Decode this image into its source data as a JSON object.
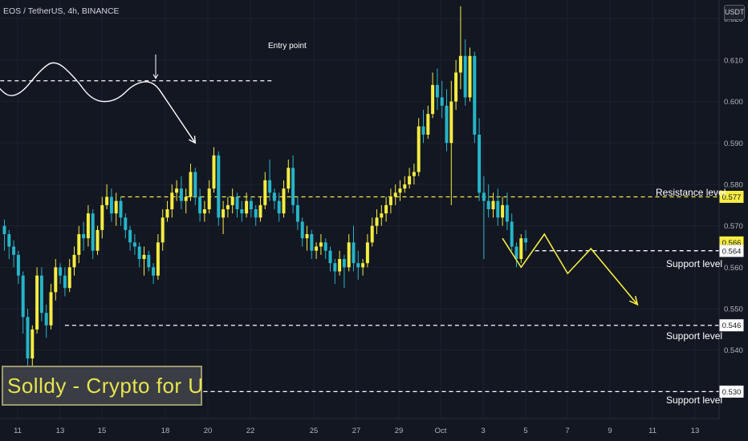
{
  "header": {
    "symbol": "EOS / TetherUS, 4h, BINANCE",
    "quote_label": "USDT"
  },
  "watermark": {
    "text": "Solldy - Crypto for U"
  },
  "annotations": {
    "entry_point": "Entry point",
    "resistance": "Resistance level",
    "support": "Support level"
  },
  "colors": {
    "bull": "#f5ec42",
    "bear": "#26b4c8",
    "bg": "#131722",
    "resistance_line": "#f5ec42",
    "support_line": "#ffffff"
  },
  "chart_data": {
    "type": "candlestick",
    "y_ticks": [
      "0.620",
      "0.610",
      "0.600",
      "0.590",
      "0.580",
      "0.570",
      "0.560",
      "0.550",
      "0.540",
      "0.530"
    ],
    "x_ticks": [
      "11",
      "13",
      "15",
      "18",
      "20",
      "22",
      "25",
      "27",
      "29",
      "Oct",
      "3",
      "5",
      "7",
      "9",
      "11",
      "13"
    ],
    "ylim": [
      0.5235,
      0.6245
    ],
    "levels": [
      {
        "name": "Resistance level",
        "value": 0.577,
        "label": "0.577"
      },
      {
        "name": "Support level",
        "value": 0.564,
        "label": "0.564"
      },
      {
        "name": "Support level",
        "value": 0.546,
        "label": "0.546"
      },
      {
        "name": "Support level",
        "value": 0.53,
        "label": "0.530"
      }
    ],
    "last_price": {
      "value": 0.566,
      "label": "0.566"
    },
    "candles": [
      [
        0.57,
        0.5715,
        0.564,
        0.568
      ],
      [
        0.568,
        0.569,
        0.562,
        0.565
      ],
      [
        0.565,
        0.5665,
        0.56,
        0.563
      ],
      [
        0.563,
        0.564,
        0.556,
        0.558
      ],
      [
        0.558,
        0.559,
        0.544,
        0.548
      ],
      [
        0.548,
        0.55,
        0.535,
        0.538
      ],
      [
        0.538,
        0.546,
        0.533,
        0.545
      ],
      [
        0.545,
        0.56,
        0.544,
        0.558
      ],
      [
        0.558,
        0.56,
        0.547,
        0.549
      ],
      [
        0.549,
        0.551,
        0.543,
        0.546
      ],
      [
        0.546,
        0.556,
        0.545,
        0.554
      ],
      [
        0.554,
        0.562,
        0.552,
        0.56
      ],
      [
        0.56,
        0.561,
        0.556,
        0.558
      ],
      [
        0.558,
        0.56,
        0.553,
        0.555
      ],
      [
        0.555,
        0.562,
        0.554,
        0.56
      ],
      [
        0.56,
        0.565,
        0.558,
        0.563
      ],
      [
        0.563,
        0.57,
        0.561,
        0.568
      ],
      [
        0.568,
        0.571,
        0.564,
        0.567
      ],
      [
        0.567,
        0.575,
        0.565,
        0.573
      ],
      [
        0.573,
        0.574,
        0.562,
        0.564
      ],
      [
        0.564,
        0.57,
        0.563,
        0.569
      ],
      [
        0.569,
        0.577,
        0.567,
        0.575
      ],
      [
        0.575,
        0.58,
        0.574,
        0.577
      ],
      [
        0.577,
        0.579,
        0.571,
        0.573
      ],
      [
        0.573,
        0.578,
        0.57,
        0.576
      ],
      [
        0.576,
        0.577,
        0.57,
        0.572
      ],
      [
        0.572,
        0.573,
        0.567,
        0.569
      ],
      [
        0.569,
        0.57,
        0.564,
        0.566
      ],
      [
        0.566,
        0.568,
        0.563,
        0.565
      ],
      [
        0.565,
        0.566,
        0.56,
        0.562
      ],
      [
        0.562,
        0.565,
        0.558,
        0.563
      ],
      [
        0.563,
        0.564,
        0.559,
        0.56
      ],
      [
        0.56,
        0.561,
        0.556,
        0.558
      ],
      [
        0.558,
        0.568,
        0.557,
        0.566
      ],
      [
        0.566,
        0.574,
        0.564,
        0.572
      ],
      [
        0.572,
        0.576,
        0.571,
        0.574
      ],
      [
        0.574,
        0.58,
        0.572,
        0.578
      ],
      [
        0.578,
        0.581,
        0.576,
        0.579
      ],
      [
        0.579,
        0.582,
        0.574,
        0.576
      ],
      [
        0.576,
        0.579,
        0.573,
        0.577
      ],
      [
        0.577,
        0.585,
        0.576,
        0.583
      ],
      [
        0.583,
        0.584,
        0.575,
        0.577
      ],
      [
        0.577,
        0.579,
        0.571,
        0.573
      ],
      [
        0.573,
        0.576,
        0.571,
        0.574
      ],
      [
        0.574,
        0.581,
        0.573,
        0.579
      ],
      [
        0.579,
        0.589,
        0.578,
        0.587
      ],
      [
        0.587,
        0.588,
        0.57,
        0.572
      ],
      [
        0.572,
        0.576,
        0.568,
        0.574
      ],
      [
        0.574,
        0.577,
        0.572,
        0.575
      ],
      [
        0.575,
        0.579,
        0.573,
        0.577
      ],
      [
        0.577,
        0.578,
        0.572,
        0.574
      ],
      [
        0.574,
        0.576,
        0.571,
        0.573
      ],
      [
        0.573,
        0.578,
        0.572,
        0.576
      ],
      [
        0.576,
        0.577,
        0.572,
        0.574
      ],
      [
        0.574,
        0.575,
        0.57,
        0.572
      ],
      [
        0.572,
        0.577,
        0.571,
        0.575
      ],
      [
        0.575,
        0.583,
        0.574,
        0.581
      ],
      [
        0.581,
        0.586,
        0.576,
        0.578
      ],
      [
        0.578,
        0.579,
        0.574,
        0.576
      ],
      [
        0.576,
        0.578,
        0.571,
        0.573
      ],
      [
        0.573,
        0.581,
        0.572,
        0.579
      ],
      [
        0.579,
        0.586,
        0.578,
        0.584
      ],
      [
        0.584,
        0.587,
        0.573,
        0.575
      ],
      [
        0.575,
        0.577,
        0.569,
        0.571
      ],
      [
        0.571,
        0.572,
        0.565,
        0.567
      ],
      [
        0.567,
        0.57,
        0.564,
        0.568
      ],
      [
        0.568,
        0.569,
        0.562,
        0.564
      ],
      [
        0.564,
        0.566,
        0.562,
        0.565
      ],
      [
        0.565,
        0.568,
        0.563,
        0.566
      ],
      [
        0.566,
        0.567,
        0.562,
        0.564
      ],
      [
        0.564,
        0.565,
        0.559,
        0.561
      ],
      [
        0.561,
        0.562,
        0.556,
        0.559
      ],
      [
        0.559,
        0.564,
        0.558,
        0.562
      ],
      [
        0.562,
        0.563,
        0.555,
        0.56
      ],
      [
        0.56,
        0.568,
        0.559,
        0.566
      ],
      [
        0.566,
        0.57,
        0.559,
        0.561
      ],
      [
        0.561,
        0.564,
        0.557,
        0.56
      ],
      [
        0.56,
        0.562,
        0.558,
        0.561
      ],
      [
        0.561,
        0.568,
        0.56,
        0.566
      ],
      [
        0.566,
        0.572,
        0.565,
        0.57
      ],
      [
        0.57,
        0.574,
        0.568,
        0.572
      ],
      [
        0.572,
        0.575,
        0.57,
        0.573
      ],
      [
        0.573,
        0.577,
        0.571,
        0.575
      ],
      [
        0.575,
        0.579,
        0.573,
        0.577
      ],
      [
        0.577,
        0.58,
        0.575,
        0.578
      ],
      [
        0.578,
        0.581,
        0.576,
        0.579
      ],
      [
        0.579,
        0.582,
        0.578,
        0.58
      ],
      [
        0.58,
        0.584,
        0.579,
        0.582
      ],
      [
        0.582,
        0.585,
        0.58,
        0.583
      ],
      [
        0.583,
        0.596,
        0.582,
        0.594
      ],
      [
        0.594,
        0.598,
        0.59,
        0.592
      ],
      [
        0.592,
        0.599,
        0.591,
        0.597
      ],
      [
        0.597,
        0.607,
        0.596,
        0.604
      ],
      [
        0.604,
        0.608,
        0.598,
        0.601
      ],
      [
        0.601,
        0.605,
        0.596,
        0.599
      ],
      [
        0.599,
        0.603,
        0.588,
        0.59
      ],
      [
        0.59,
        0.605,
        0.575,
        0.6
      ],
      [
        0.6,
        0.61,
        0.598,
        0.607
      ],
      [
        0.607,
        0.623,
        0.603,
        0.611
      ],
      [
        0.611,
        0.615,
        0.599,
        0.601
      ],
      [
        0.601,
        0.613,
        0.6,
        0.611
      ],
      [
        0.611,
        0.612,
        0.59,
        0.592
      ],
      [
        0.592,
        0.596,
        0.576,
        0.578
      ],
      [
        0.578,
        0.582,
        0.562,
        0.576
      ],
      [
        0.576,
        0.58,
        0.572,
        0.574
      ],
      [
        0.574,
        0.578,
        0.572,
        0.576
      ],
      [
        0.576,
        0.579,
        0.57,
        0.572
      ],
      [
        0.572,
        0.577,
        0.57,
        0.575
      ],
      [
        0.575,
        0.578,
        0.569,
        0.571
      ],
      [
        0.571,
        0.573,
        0.564,
        0.565
      ],
      [
        0.565,
        0.566,
        0.56,
        0.562
      ],
      [
        0.562,
        0.568,
        0.561,
        0.567
      ],
      [
        0.567,
        0.569,
        0.564,
        0.566
      ]
    ],
    "projection": [
      {
        "t": 107,
        "v": 0.567
      },
      {
        "t": 111,
        "v": 0.56
      },
      {
        "t": 116,
        "v": 0.568
      },
      {
        "t": 121,
        "v": 0.5585
      },
      {
        "t": 126,
        "v": 0.5645
      },
      {
        "t": 136,
        "v": 0.551
      }
    ],
    "sketch": {
      "dashed_value": 0.605,
      "dashed_t": [
        -4,
        58
      ],
      "curve": [
        [
          -4.5,
          0.609
        ],
        [
          -1,
          0.602
        ],
        [
          3,
          0.601
        ],
        [
          8,
          0.608
        ],
        [
          11,
          0.61
        ],
        [
          15,
          0.606
        ],
        [
          19,
          0.6
        ],
        [
          24,
          0.6
        ],
        [
          28,
          0.6045
        ],
        [
          32,
          0.605
        ],
        [
          35,
          0.6
        ],
        [
          41,
          0.59
        ]
      ],
      "entry_t": 32.5
    }
  }
}
